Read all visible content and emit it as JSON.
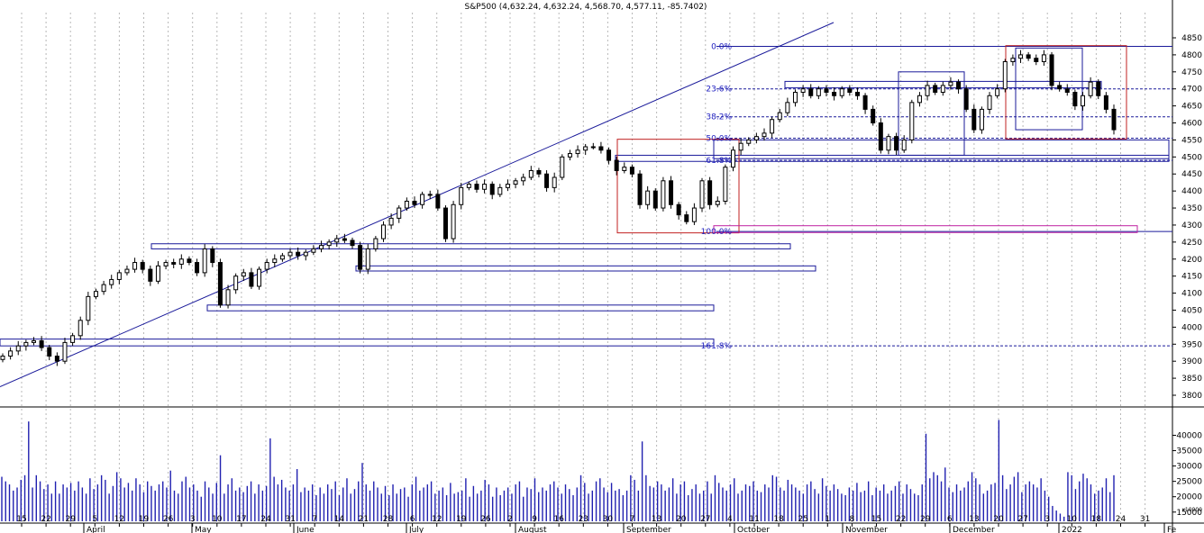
{
  "chart_data": [
    {
      "type": "candlestick",
      "title": "S&P500 (4,632.24, 4,632.24, 4,568.70, 4,577.11, -85.7402)",
      "ylim": [
        3750,
        4900
      ],
      "y_ticks": [
        3800,
        3850,
        3900,
        3950,
        4000,
        4050,
        4100,
        4150,
        4200,
        4250,
        4300,
        4350,
        4400,
        4450,
        4500,
        4550,
        4600,
        4650,
        4700,
        4750,
        4800,
        4850
      ],
      "x_day_ticks": [
        "15",
        "22",
        "29",
        "5",
        "12",
        "19",
        "26",
        "3",
        "10",
        "17",
        "24",
        "31",
        "7",
        "14",
        "21",
        "28",
        "6",
        "12",
        "19",
        "26",
        "2",
        "9",
        "16",
        "23",
        "30",
        "7",
        "13",
        "20",
        "27",
        "4",
        "11",
        "18",
        "25",
        "1",
        "8",
        "15",
        "22",
        "29",
        "6",
        "13",
        "20",
        "27",
        "3",
        "10",
        "18",
        "24",
        "31"
      ],
      "x_month_labels": [
        "April",
        "May",
        "June",
        "July",
        "August",
        "September",
        "October",
        "November",
        "December",
        "2022",
        "Fe"
      ],
      "close_estimates": [
        3915,
        3930,
        3945,
        3955,
        3960,
        3940,
        3915,
        3900,
        3955,
        3975,
        4020,
        4090,
        4105,
        4125,
        4140,
        4160,
        4170,
        4190,
        4170,
        4135,
        4180,
        4190,
        4185,
        4200,
        4190,
        4160,
        4230,
        4190,
        4065,
        4110,
        4150,
        4160,
        4120,
        4170,
        4190,
        4200,
        4210,
        4220,
        4210,
        4220,
        4230,
        4240,
        4250,
        4260,
        4255,
        4240,
        4170,
        4230,
        4260,
        4300,
        4320,
        4350,
        4370,
        4360,
        4390,
        4390,
        4350,
        4260,
        4360,
        4410,
        4420,
        4405,
        4420,
        4390,
        4410,
        4420,
        4430,
        4440,
        4460,
        4450,
        4410,
        4440,
        4500,
        4510,
        4520,
        4530,
        4530,
        4520,
        4490,
        4460,
        4470,
        4450,
        4360,
        4400,
        4350,
        4430,
        4360,
        4330,
        4310,
        4350,
        4430,
        4360,
        4370,
        4470,
        4520,
        4540,
        4550,
        4560,
        4570,
        4610,
        4630,
        4660,
        4690,
        4700,
        4680,
        4700,
        4690,
        4680,
        4700,
        4690,
        4680,
        4640,
        4600,
        4520,
        4560,
        4520,
        4550,
        4660,
        4680,
        4710,
        4690,
        4710,
        4720,
        4700,
        4640,
        4580,
        4640,
        4680,
        4700,
        4780,
        4790,
        4800,
        4790,
        4780,
        4800,
        4710,
        4700,
        4690,
        4650,
        4680,
        4720,
        4680,
        4640,
        4580
      ]
    },
    {
      "type": "bar",
      "series_name": "Volume",
      "ylim": [
        12000,
        46000
      ],
      "y_ticks": [
        15000,
        20000,
        25000,
        30000,
        35000,
        40000
      ],
      "y_scale_label": "x10000",
      "volume_estimates": [
        26500,
        25000,
        24000,
        22000,
        23000,
        25500,
        27000,
        44500,
        23000,
        27000,
        25000,
        22500,
        24000,
        21000,
        25000,
        21000,
        24000,
        23000,
        24500,
        22000,
        25000,
        23000,
        21000,
        26000,
        22500,
        24000,
        27000,
        25500,
        21000,
        23500,
        28000,
        26000,
        23000,
        24500,
        22000,
        26000,
        24000,
        21500,
        25000,
        23500,
        22000,
        24000,
        25000,
        23000,
        28500,
        22000,
        21000,
        25000,
        26500,
        23000,
        24000,
        22000,
        20000,
        25000,
        23000,
        21000,
        24500,
        33500,
        21000,
        24000,
        26000,
        22000,
        23000,
        21500,
        23500,
        25000,
        21000,
        24000,
        22000,
        23500,
        39000,
        26500,
        24000,
        25500,
        23000,
        22000,
        24000,
        29000,
        21500,
        23000,
        22000,
        24000,
        20500,
        23000,
        21000,
        24000,
        22500,
        25000,
        20500,
        23000,
        26000,
        21000,
        22500,
        25000,
        31000,
        24000,
        22000,
        25000,
        23000,
        21000,
        23500,
        20500,
        24000,
        21000,
        22500,
        23000,
        20000,
        24000,
        26500,
        22000,
        23000,
        24000,
        25000,
        21000,
        22000,
        23000,
        20500,
        24500,
        21000,
        21500,
        22000,
        26000,
        20000,
        23500,
        21000,
        22000,
        25500,
        24000,
        20000,
        23000,
        20500,
        22000,
        23000,
        21000,
        24000,
        25000,
        20000,
        23000,
        22500,
        26000,
        21500,
        23000,
        22000,
        24000,
        25000,
        23000,
        21000,
        24000,
        22500,
        20500,
        23000,
        27000,
        24500,
        21000,
        22000,
        25000,
        26000,
        23000,
        21500,
        24500,
        22000,
        22500,
        20500,
        22000,
        27000,
        25500,
        22000,
        38000,
        27000,
        23500,
        23000,
        25000,
        24000,
        22000,
        23000,
        26000,
        21000,
        24000,
        25000,
        20500,
        22500,
        24000,
        21000,
        22000,
        25000,
        21000,
        27000,
        24500,
        23000,
        22000,
        24000,
        26000,
        21000,
        22000,
        24000,
        23500,
        25000,
        22000,
        21500,
        24000,
        23000,
        27000,
        26500,
        23000,
        22000,
        25500,
        24000,
        23000,
        22000,
        21000,
        24000,
        25000,
        22500,
        21000,
        26000,
        23500,
        22000,
        24000,
        22500,
        21000,
        20500,
        23000,
        22000,
        24500,
        21500,
        22000,
        25000,
        20500,
        23000,
        22000,
        24000,
        21000,
        22000,
        23500,
        25000,
        21000,
        24000,
        22500,
        21000,
        20500,
        24000,
        40500,
        26000,
        28000,
        27000,
        25000,
        29500,
        23000,
        21500,
        24000,
        22000,
        23000,
        25000,
        28000,
        26000,
        24000,
        21000,
        22000,
        24000,
        24500,
        45000,
        27000,
        22500,
        24000,
        26500,
        28000,
        21500,
        24000,
        25000,
        24000,
        23000,
        26000,
        22000,
        20000,
        17000,
        15500,
        14500,
        13500,
        28000,
        27000,
        22500,
        25000,
        27500,
        26000,
        24000,
        21000,
        22000,
        23000,
        26000,
        21500,
        27000
      ]
    }
  ],
  "fibonacci": [
    "0.0%",
    "23.6%",
    "38.2%",
    "50.0%",
    "61.8%",
    "100.0%",
    "161.8%"
  ]
}
